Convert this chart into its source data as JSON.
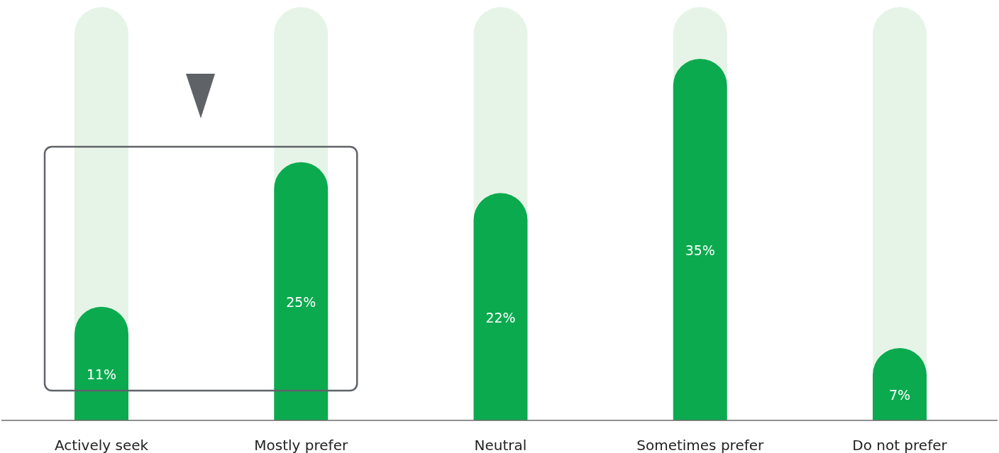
{
  "chart_data": {
    "type": "bar",
    "categories": [
      "Actively seek",
      "Mostly prefer",
      "Neutral",
      "Sometimes prefer",
      "Do not prefer"
    ],
    "values": [
      11,
      25,
      22,
      35,
      7
    ],
    "color": "#0baa4f",
    "ylim": [
      0,
      40
    ],
    "tick_labels": "x",
    "value_labels": [
      "11%",
      "25%",
      "22%",
      "35%",
      "7%"
    ]
  }
}
